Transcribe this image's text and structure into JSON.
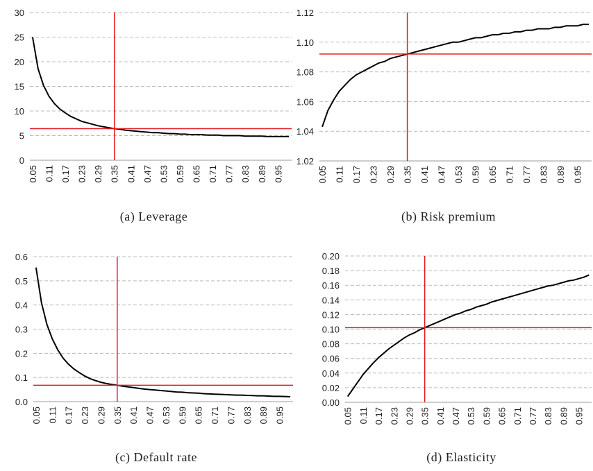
{
  "chart_data": [
    {
      "type": "line",
      "caption": "(a) Leverage",
      "x": [
        0.05,
        0.07,
        0.09,
        0.11,
        0.13,
        0.15,
        0.17,
        0.19,
        0.21,
        0.23,
        0.25,
        0.27,
        0.29,
        0.31,
        0.33,
        0.35,
        0.37,
        0.39,
        0.41,
        0.43,
        0.45,
        0.47,
        0.49,
        0.51,
        0.53,
        0.55,
        0.57,
        0.59,
        0.61,
        0.63,
        0.65,
        0.67,
        0.69,
        0.71,
        0.73,
        0.75,
        0.77,
        0.79,
        0.81,
        0.83,
        0.85,
        0.87,
        0.89,
        0.91,
        0.93,
        0.95,
        0.97,
        0.99
      ],
      "xlim": [
        0.04,
        1.0
      ],
      "xticks": [
        0.05,
        0.11,
        0.17,
        0.23,
        0.29,
        0.35,
        0.41,
        0.47,
        0.53,
        0.59,
        0.65,
        0.71,
        0.77,
        0.83,
        0.89,
        0.95
      ],
      "series": [
        {
          "color": "#000000",
          "values": [
            25.0,
            18.6,
            15.2,
            13.0,
            11.5,
            10.4,
            9.6,
            8.9,
            8.4,
            7.9,
            7.6,
            7.3,
            7.0,
            6.8,
            6.6,
            6.4,
            6.3,
            6.1,
            6.0,
            5.9,
            5.8,
            5.7,
            5.6,
            5.6,
            5.5,
            5.4,
            5.4,
            5.3,
            5.3,
            5.2,
            5.2,
            5.2,
            5.1,
            5.1,
            5.1,
            5.0,
            5.0,
            5.0,
            5.0,
            4.9,
            4.9,
            4.9,
            4.9,
            4.8,
            4.8,
            4.8,
            4.8,
            4.8
          ]
        }
      ],
      "ylim": [
        0,
        30
      ],
      "yticks": [
        0,
        5,
        10,
        15,
        20,
        25,
        30
      ],
      "grid": true,
      "reference_lines": {
        "x": 0.35,
        "y": 6.4,
        "color": "#e31a1c"
      }
    },
    {
      "type": "line",
      "caption": "(b) Risk premium",
      "x": [
        0.05,
        0.07,
        0.09,
        0.11,
        0.13,
        0.15,
        0.17,
        0.19,
        0.21,
        0.23,
        0.25,
        0.27,
        0.29,
        0.31,
        0.33,
        0.35,
        0.37,
        0.39,
        0.41,
        0.43,
        0.45,
        0.47,
        0.49,
        0.51,
        0.53,
        0.55,
        0.57,
        0.59,
        0.61,
        0.63,
        0.65,
        0.67,
        0.69,
        0.71,
        0.73,
        0.75,
        0.77,
        0.79,
        0.81,
        0.83,
        0.85,
        0.87,
        0.89,
        0.91,
        0.93,
        0.95,
        0.97,
        0.99
      ],
      "xlim": [
        0.04,
        1.0
      ],
      "xticks": [
        0.05,
        0.11,
        0.17,
        0.23,
        0.29,
        0.35,
        0.41,
        0.47,
        0.53,
        0.59,
        0.65,
        0.71,
        0.77,
        0.83,
        0.89,
        0.95
      ],
      "series": [
        {
          "color": "#000000",
          "values": [
            1.043,
            1.054,
            1.061,
            1.067,
            1.071,
            1.075,
            1.078,
            1.08,
            1.082,
            1.084,
            1.086,
            1.087,
            1.089,
            1.09,
            1.091,
            1.092,
            1.093,
            1.094,
            1.095,
            1.096,
            1.097,
            1.098,
            1.099,
            1.1,
            1.1,
            1.101,
            1.102,
            1.103,
            1.103,
            1.104,
            1.105,
            1.105,
            1.106,
            1.106,
            1.107,
            1.107,
            1.108,
            1.108,
            1.109,
            1.109,
            1.109,
            1.11,
            1.11,
            1.111,
            1.111,
            1.111,
            1.112,
            1.112
          ]
        }
      ],
      "ylim": [
        1.02,
        1.12
      ],
      "yticks": [
        1.02,
        1.04,
        1.06,
        1.08,
        {
          "value": 1.1,
          "label": "1.10"
        },
        1.12
      ],
      "grid": true,
      "reference_lines": {
        "x": 0.35,
        "y": 1.092,
        "color": "#e31a1c"
      }
    },
    {
      "type": "line",
      "caption": "(c) Default rate",
      "x": [
        0.05,
        0.07,
        0.09,
        0.11,
        0.13,
        0.15,
        0.17,
        0.19,
        0.21,
        0.23,
        0.25,
        0.27,
        0.29,
        0.31,
        0.33,
        0.35,
        0.37,
        0.39,
        0.41,
        0.43,
        0.45,
        0.47,
        0.49,
        0.51,
        0.53,
        0.55,
        0.57,
        0.59,
        0.61,
        0.63,
        0.65,
        0.67,
        0.69,
        0.71,
        0.73,
        0.75,
        0.77,
        0.79,
        0.81,
        0.83,
        0.85,
        0.87,
        0.89,
        0.91,
        0.93,
        0.95,
        0.97,
        0.99
      ],
      "xlim": [
        0.04,
        1.0
      ],
      "xticks": [
        0.05,
        0.11,
        0.17,
        0.23,
        0.29,
        0.35,
        0.41,
        0.47,
        0.53,
        0.59,
        0.65,
        0.71,
        0.77,
        0.83,
        0.89,
        0.95
      ],
      "series": [
        {
          "color": "#000000",
          "values": [
            0.555,
            0.41,
            0.32,
            0.26,
            0.215,
            0.18,
            0.155,
            0.135,
            0.12,
            0.106,
            0.095,
            0.087,
            0.08,
            0.075,
            0.071,
            0.068,
            0.064,
            0.061,
            0.058,
            0.055,
            0.052,
            0.05,
            0.048,
            0.046,
            0.044,
            0.042,
            0.04,
            0.039,
            0.037,
            0.036,
            0.035,
            0.033,
            0.032,
            0.031,
            0.03,
            0.029,
            0.028,
            0.027,
            0.027,
            0.026,
            0.025,
            0.024,
            0.024,
            0.023,
            0.022,
            0.022,
            0.021,
            0.02
          ]
        }
      ],
      "ylim": [
        0,
        0.6
      ],
      "yticks": [
        {
          "value": 0,
          "label": "0.0"
        },
        0.1,
        0.2,
        0.3,
        0.4,
        0.5,
        0.6
      ],
      "grid": true,
      "reference_lines": {
        "x": 0.35,
        "y": 0.068,
        "color": "#e31a1c"
      }
    },
    {
      "type": "line",
      "caption": "(d) Elasticity",
      "x": [
        0.05,
        0.07,
        0.09,
        0.11,
        0.13,
        0.15,
        0.17,
        0.19,
        0.21,
        0.23,
        0.25,
        0.27,
        0.29,
        0.31,
        0.33,
        0.35,
        0.37,
        0.39,
        0.41,
        0.43,
        0.45,
        0.47,
        0.49,
        0.51,
        0.53,
        0.55,
        0.57,
        0.59,
        0.61,
        0.63,
        0.65,
        0.67,
        0.69,
        0.71,
        0.73,
        0.75,
        0.77,
        0.79,
        0.81,
        0.83,
        0.85,
        0.87,
        0.89,
        0.91,
        0.93,
        0.95,
        0.97,
        0.99
      ],
      "xlim": [
        0.04,
        1.0
      ],
      "xticks": [
        0.05,
        0.11,
        0.17,
        0.23,
        0.29,
        0.35,
        0.41,
        0.47,
        0.53,
        0.59,
        0.65,
        0.71,
        0.77,
        0.83,
        0.89,
        0.95
      ],
      "series": [
        {
          "color": "#000000",
          "values": [
            0.008,
            0.018,
            0.028,
            0.038,
            0.046,
            0.054,
            0.061,
            0.067,
            0.073,
            0.078,
            0.083,
            0.088,
            0.092,
            0.095,
            0.099,
            0.102,
            0.105,
            0.108,
            0.111,
            0.114,
            0.117,
            0.12,
            0.122,
            0.125,
            0.127,
            0.13,
            0.132,
            0.134,
            0.137,
            0.139,
            0.141,
            0.143,
            0.145,
            0.147,
            0.149,
            0.151,
            0.153,
            0.155,
            0.157,
            0.159,
            0.16,
            0.162,
            0.164,
            0.166,
            0.167,
            0.169,
            0.171,
            0.174
          ]
        }
      ],
      "ylim": [
        0,
        0.2
      ],
      "yticks": [
        {
          "value": 0,
          "label": "0.00"
        },
        0.02,
        0.04,
        0.06,
        0.08,
        {
          "value": 0.1,
          "label": "0.10"
        },
        0.12,
        0.14,
        0.16,
        0.18,
        {
          "value": 0.2,
          "label": "0.20"
        }
      ],
      "grid": true,
      "reference_lines": {
        "x": 0.35,
        "y": 0.102,
        "color": "#e31a1c"
      }
    }
  ]
}
